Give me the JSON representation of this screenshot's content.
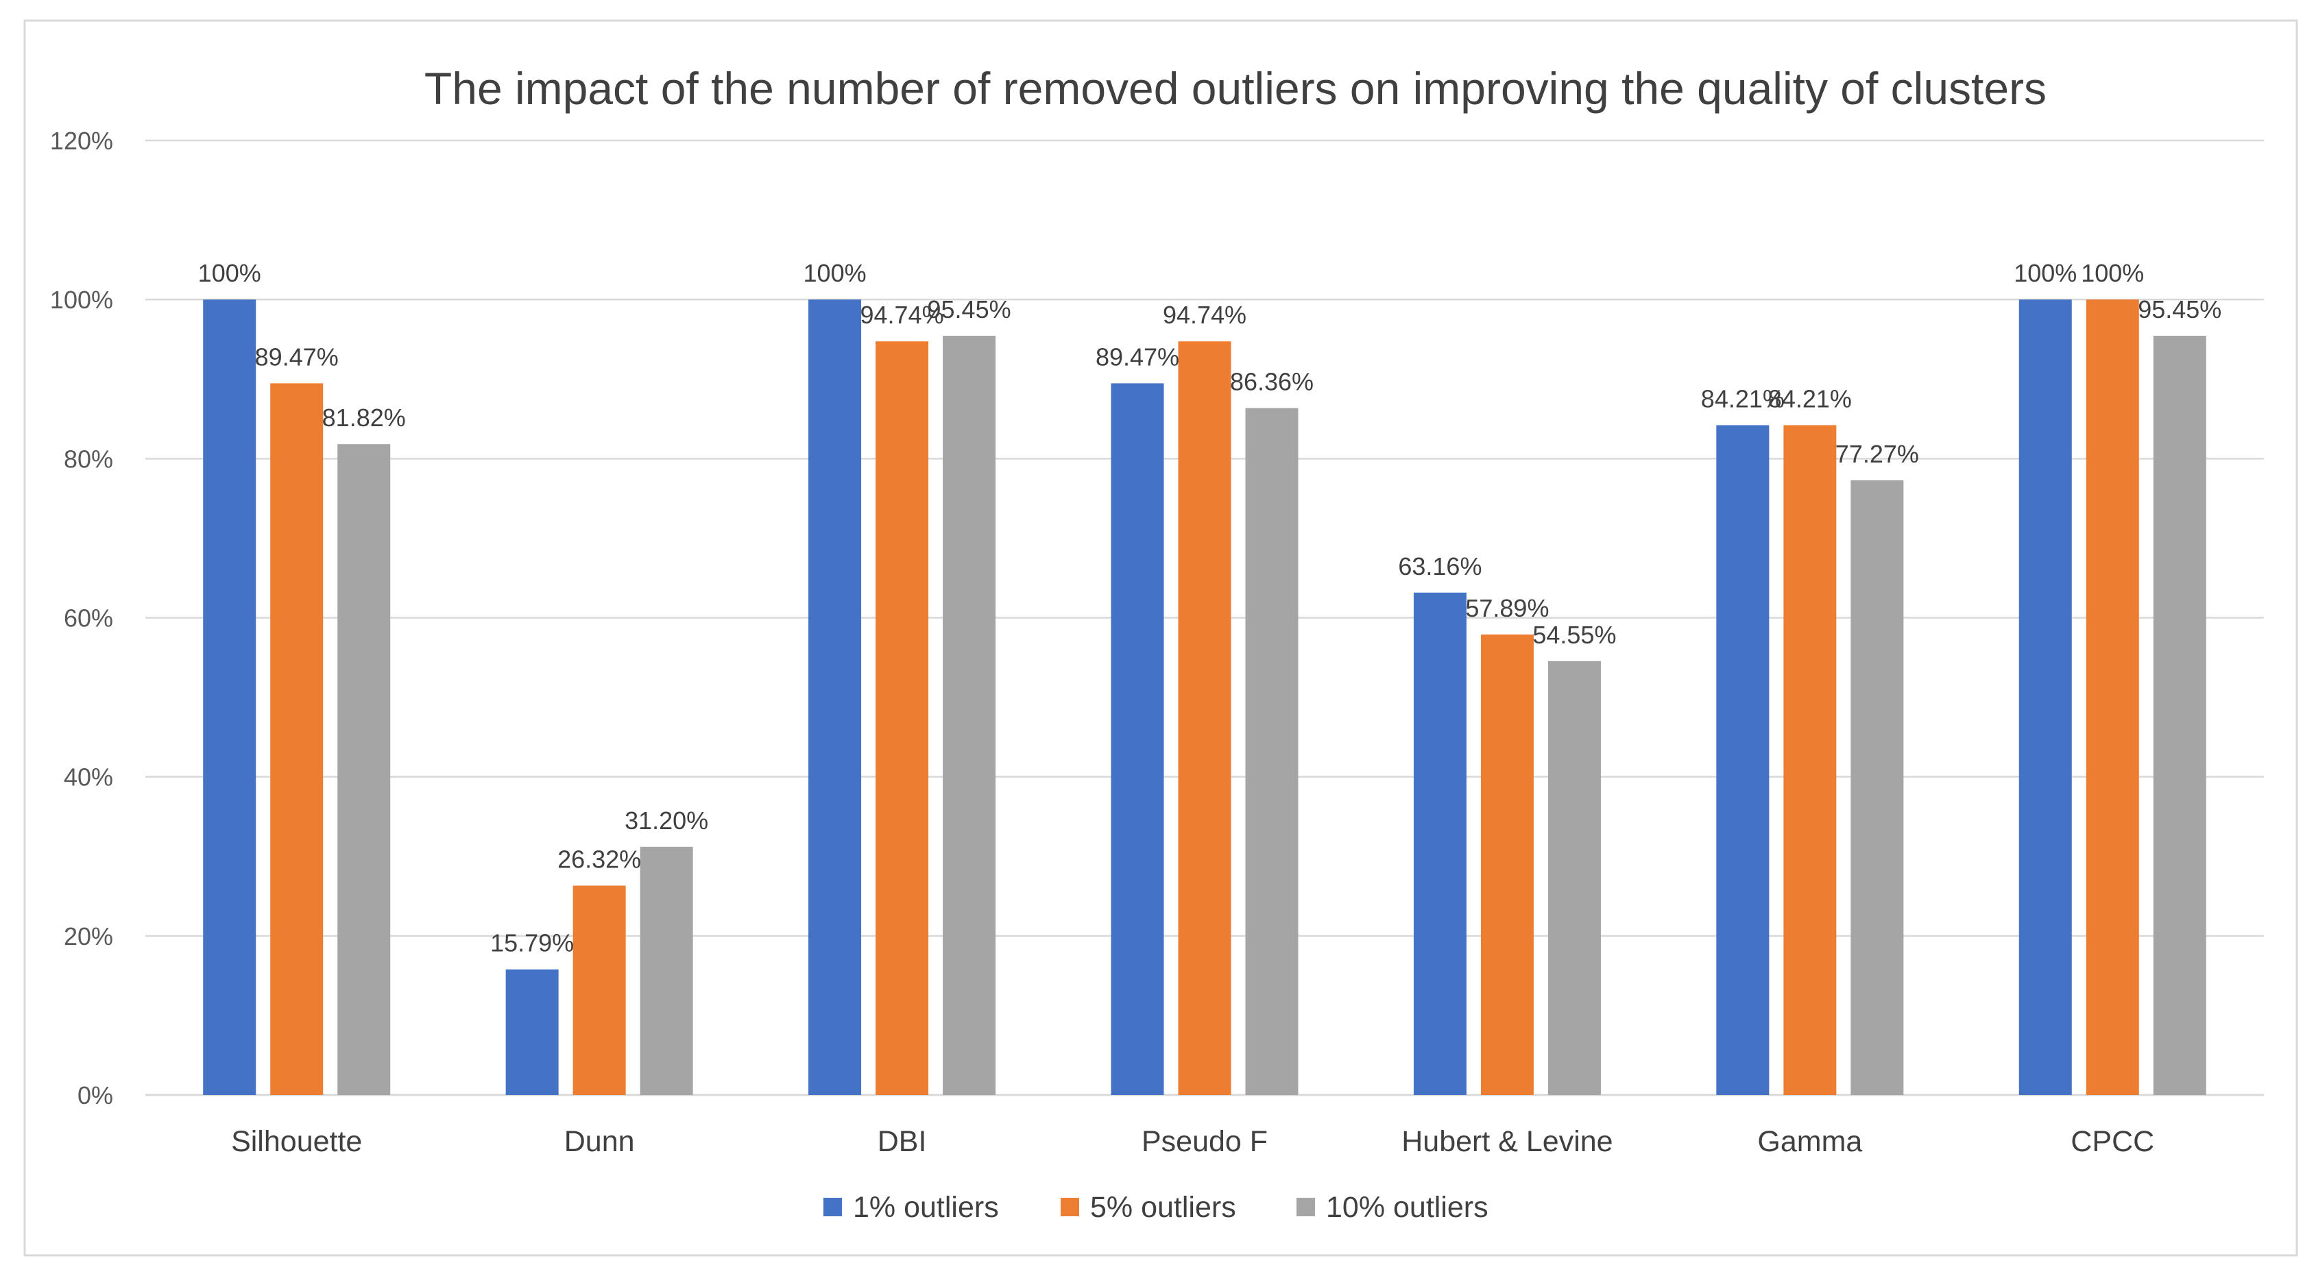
{
  "chart_data": {
    "type": "bar",
    "title": "The impact of the number of removed outliers on improving the quality of clusters",
    "xlabel": "",
    "ylabel": "",
    "ylim": [
      0,
      120
    ],
    "y_ticks": [
      0,
      20,
      40,
      60,
      80,
      100,
      120
    ],
    "y_tick_labels": [
      "0%",
      "20%",
      "40%",
      "60%",
      "80%",
      "100%",
      "120%"
    ],
    "grid": true,
    "legend_position": "bottom",
    "categories": [
      "Silhouette",
      "Dunn",
      "DBI",
      "Pseudo F",
      "Hubert & Levine",
      "Gamma",
      "CPCC"
    ],
    "series": [
      {
        "name": "1% outliers",
        "color": "#4472c4",
        "values": [
          100,
          15.79,
          100,
          89.47,
          63.16,
          84.21,
          100
        ],
        "labels": [
          "100%",
          "15.79%",
          "100%",
          "89.47%",
          "63.16%",
          "84.21%",
          "100%"
        ]
      },
      {
        "name": "5% outliers",
        "color": "#ed7d31",
        "values": [
          89.47,
          26.32,
          94.74,
          94.74,
          57.89,
          84.21,
          100
        ],
        "labels": [
          "89.47%",
          "26.32%",
          "94.74%",
          "94.74%",
          "57.89%",
          "84.21%",
          "100%"
        ]
      },
      {
        "name": "10% outliers",
        "color": "#a5a5a5",
        "values": [
          81.82,
          31.2,
          95.45,
          86.36,
          54.55,
          77.27,
          95.45
        ],
        "labels": [
          "81.82%",
          "31.20%",
          "95.45%",
          "86.36%",
          "54.55%",
          "77.27%",
          "95.45%"
        ]
      }
    ]
  }
}
